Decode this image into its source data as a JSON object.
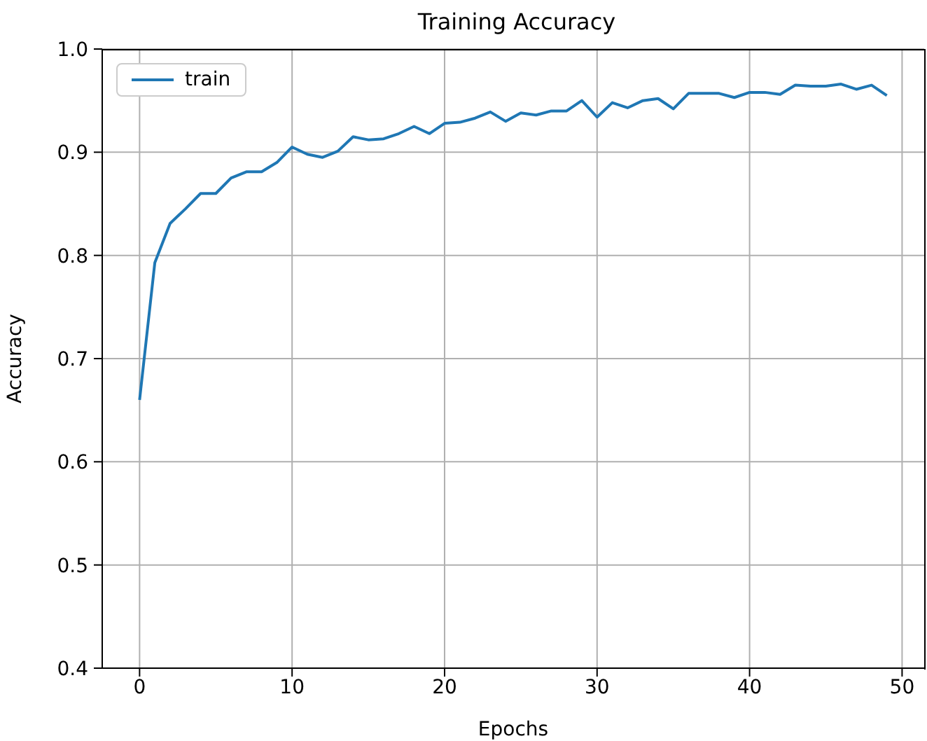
{
  "chart_data": {
    "type": "line",
    "title": "Training Accuracy",
    "xlabel": "Epochs",
    "ylabel": "Accuracy",
    "x": [
      0,
      1,
      2,
      3,
      4,
      5,
      6,
      7,
      8,
      9,
      10,
      11,
      12,
      13,
      14,
      15,
      16,
      17,
      18,
      19,
      20,
      21,
      22,
      23,
      24,
      25,
      26,
      27,
      28,
      29,
      30,
      31,
      32,
      33,
      34,
      35,
      36,
      37,
      38,
      39,
      40,
      41,
      42,
      43,
      44,
      45,
      46,
      47,
      48,
      49
    ],
    "series": [
      {
        "name": "train",
        "color": "#1f77b4",
        "values": [
          0.66,
          0.793,
          0.831,
          0.845,
          0.86,
          0.86,
          0.875,
          0.881,
          0.881,
          0.89,
          0.905,
          0.898,
          0.895,
          0.901,
          0.915,
          0.912,
          0.913,
          0.918,
          0.925,
          0.918,
          0.928,
          0.929,
          0.933,
          0.939,
          0.93,
          0.938,
          0.936,
          0.94,
          0.94,
          0.95,
          0.934,
          0.948,
          0.943,
          0.95,
          0.952,
          0.942,
          0.957,
          0.957,
          0.957,
          0.953,
          0.958,
          0.958,
          0.956,
          0.965,
          0.964,
          0.964,
          0.966,
          0.961,
          0.965,
          0.955
        ]
      }
    ],
    "xlim": [
      -2.45,
      51.45
    ],
    "xticks": [
      0,
      10,
      20,
      30,
      40,
      50
    ],
    "ylim": [
      0.4,
      1.0
    ],
    "yticks": [
      {
        "value": 0.4,
        "label": "0.4"
      },
      {
        "value": 0.5,
        "label": "0.5"
      },
      {
        "value": 0.6,
        "label": "0.6"
      },
      {
        "value": 0.7,
        "label": "0.7"
      },
      {
        "value": 0.8,
        "label": "0.8"
      },
      {
        "value": 0.9,
        "label": "0.9"
      },
      {
        "value": 1.0,
        "label": "1.0"
      }
    ],
    "grid": true,
    "legend": "top left",
    "marker": "none",
    "line_style": "solid"
  }
}
